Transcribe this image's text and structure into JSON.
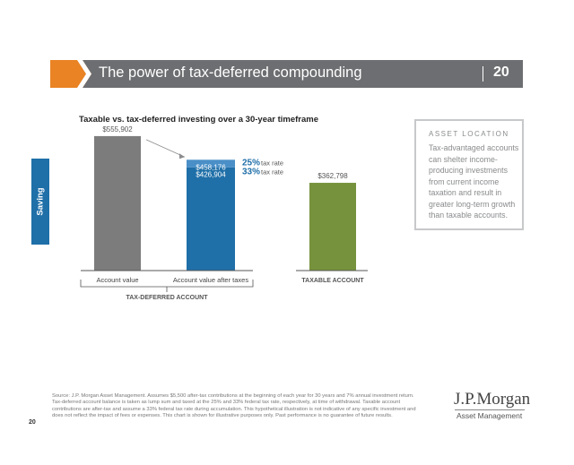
{
  "header": {
    "title": "The power of tax-deferred compounding",
    "page_number": "20"
  },
  "section_tab": {
    "label": "Saving",
    "color": "#1f6fa8"
  },
  "side_box": {
    "heading": "ASSET LOCATION",
    "text": "Tax-advantaged accounts can shelter income-producing investments from current income taxation and result in greater long-term growth than taxable accounts."
  },
  "chart_data": {
    "type": "bar",
    "title": "Taxable vs. tax-deferred investing over a 30-year timeframe",
    "ylim": [
      0,
      600000
    ],
    "grid": false,
    "bars": [
      {
        "category": "Account value",
        "value": 555902,
        "label": "$555,902",
        "color": "#7b7c7b"
      },
      {
        "category": "Account value after taxes",
        "stack": [
          {
            "value": 426904,
            "label": "$426,904",
            "color": "#1f6fa8",
            "annotation_rate": "33%",
            "annotation_text": "tax rate"
          },
          {
            "value": 458176,
            "label": "$458,176",
            "color": "#4a8fc7",
            "annotation_rate": "25%",
            "annotation_text": "tax rate"
          }
        ]
      },
      {
        "category": "TAXABLE ACCOUNT",
        "value": 362798,
        "label": "$362,798",
        "color": "#76923c"
      }
    ],
    "group_label": "TAX-DEFERRED ACCOUNT",
    "colors": {
      "rate_text": "#1f6fa8",
      "axis": "#555555",
      "arrow": "#8a8b8d"
    }
  },
  "footer": {
    "source": "Source: J.P. Morgan Asset Management. Assumes $5,500 after-tax contributions at the beginning of each year for 30 years and 7% annual investment return. Tax-deferred account balance is taken as lump sum and taxed at the 25% and 33% federal tax rate, respectively, at time of withdrawal. Taxable account contributions are after-tax and assume a 33% federal tax rate during accumulation. This hypothetical illustration is not indicative of any specific investment and does not reflect the impact of fees or expenses. This chart is shown for illustrative purposes only. Past performance is no guarantee of future results.",
    "page_number": "20",
    "logo_name": "J.P.Morgan",
    "logo_sub": "Asset Management"
  }
}
